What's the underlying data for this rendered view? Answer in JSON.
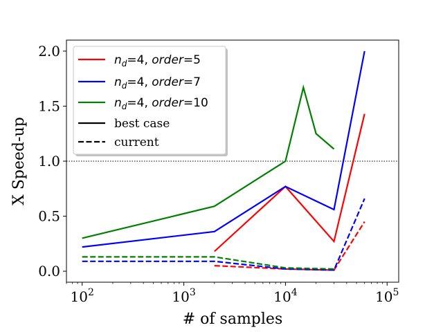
{
  "chart_data": {
    "type": "line",
    "xlabel": "# of samples",
    "ylabel": "X Speed-up",
    "xscale": "log",
    "xlim": [
      70,
      130000
    ],
    "ylim": [
      -0.1,
      2.1
    ],
    "x_ticks": [
      {
        "value": 100,
        "mantissa": "10",
        "exp": "2"
      },
      {
        "value": 1000,
        "mantissa": "10",
        "exp": "3"
      },
      {
        "value": 10000,
        "mantissa": "10",
        "exp": "4"
      },
      {
        "value": 100000,
        "mantissa": "10",
        "exp": "5"
      }
    ],
    "y_ticks": [
      {
        "value": 0.0,
        "label": "0.0"
      },
      {
        "value": 0.5,
        "label": "0.5"
      },
      {
        "value": 1.0,
        "label": "1.0"
      },
      {
        "value": 1.5,
        "label": "1.5"
      },
      {
        "value": 2.0,
        "label": "2.0"
      }
    ],
    "reference_line": {
      "y": 1.0,
      "style": "dotted",
      "color": "#000000"
    },
    "grid": false,
    "legend_position": "upper-left",
    "series": [
      {
        "key": "red-best",
        "color": "#ff0000",
        "dash": "solid",
        "x": [
          2000,
          10000,
          30000,
          60000
        ],
        "y": [
          0.18,
          0.77,
          0.27,
          1.43
        ]
      },
      {
        "key": "blue-best",
        "color": "#0000ff",
        "dash": "solid",
        "x": [
          100,
          2000,
          10000,
          30000,
          60000
        ],
        "y": [
          0.22,
          0.36,
          0.77,
          0.56,
          2.0
        ]
      },
      {
        "key": "green-best",
        "color": "#008000",
        "dash": "solid",
        "x": [
          100,
          2000,
          10000,
          15000,
          20000,
          30000
        ],
        "y": [
          0.3,
          0.59,
          1.0,
          1.67,
          1.25,
          1.11
        ]
      },
      {
        "key": "red-current",
        "color": "#ff0000",
        "dash": "dashed",
        "x": [
          2000,
          10000,
          30000,
          60000
        ],
        "y": [
          0.05,
          0.02,
          0.01,
          0.45
        ]
      },
      {
        "key": "blue-current",
        "color": "#0000ff",
        "dash": "dashed",
        "x": [
          100,
          2000,
          10000,
          30000,
          60000
        ],
        "y": [
          0.09,
          0.09,
          0.02,
          0.01,
          0.66
        ]
      },
      {
        "key": "green-current",
        "color": "#008000",
        "dash": "dashed",
        "x": [
          100,
          2000,
          10000,
          30000
        ],
        "y": [
          0.13,
          0.13,
          0.03,
          0.02
        ]
      }
    ],
    "legend": [
      {
        "key": "red",
        "color": "#ff0000",
        "dash": "solid",
        "var": "n",
        "sub": "d",
        "eq1": "=4, ",
        "param": "order",
        "eq2": "=5"
      },
      {
        "key": "blue",
        "color": "#0000ff",
        "dash": "solid",
        "var": "n",
        "sub": "d",
        "eq1": "=4, ",
        "param": "order",
        "eq2": "=7"
      },
      {
        "key": "green",
        "color": "#008000",
        "dash": "solid",
        "var": "n",
        "sub": "d",
        "eq1": "=4, ",
        "param": "order",
        "eq2": "=10"
      },
      {
        "key": "best",
        "color": "#000000",
        "dash": "solid",
        "text": "best case"
      },
      {
        "key": "current",
        "color": "#000000",
        "dash": "dashed",
        "text": "current"
      }
    ]
  }
}
